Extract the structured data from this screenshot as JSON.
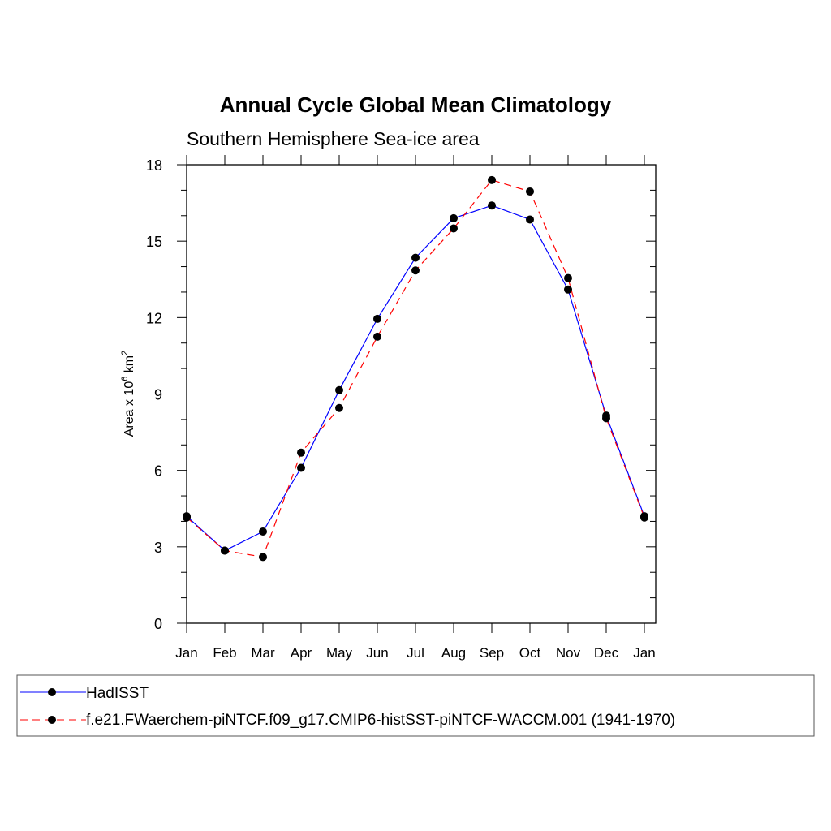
{
  "chart_data": {
    "type": "line",
    "title": "Annual Cycle Global Mean Climatology",
    "subtitle": "Southern Hemisphere Sea-ice area",
    "ylabel": {
      "base": "Area x 10",
      "exp1": "6",
      "unit": " km",
      "exp2": "2"
    },
    "xlabel": "",
    "ylim": [
      0,
      18
    ],
    "yticks": [
      0,
      3,
      6,
      9,
      12,
      15,
      18
    ],
    "categories": [
      "Jan",
      "Feb",
      "Mar",
      "Apr",
      "May",
      "Jun",
      "Jul",
      "Aug",
      "Sep",
      "Oct",
      "Nov",
      "Dec",
      "Jan"
    ],
    "series": [
      {
        "name": "HadISST",
        "color": "#0000ff",
        "dash": "solid",
        "values": [
          4.2,
          2.85,
          3.6,
          6.1,
          9.15,
          11.95,
          14.35,
          15.9,
          16.4,
          15.85,
          13.1,
          8.15,
          4.2
        ]
      },
      {
        "name": "f.e21.FWaerchem-piNTCF.f09_g17.CMIP6-histSST-piNTCF-WACCM.001 (1941-1970)",
        "color": "#ff0000",
        "dash": "dashed",
        "values": [
          4.15,
          2.85,
          2.6,
          6.7,
          8.45,
          11.25,
          13.85,
          15.5,
          17.4,
          16.95,
          13.55,
          8.05,
          4.15
        ]
      }
    ],
    "marker_color": "#000000",
    "legend_position": "bottom"
  }
}
